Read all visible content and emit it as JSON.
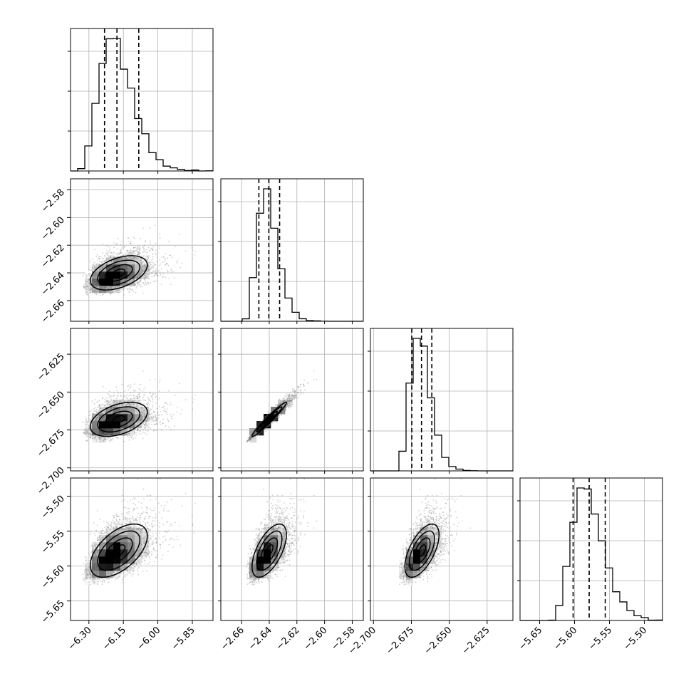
{
  "chart_data": {
    "type": "corner",
    "parameters": [
      {
        "range": [
          -6.38,
          -5.76
        ],
        "ticks": [
          -6.3,
          -6.15,
          -6.0,
          -5.85
        ],
        "tick_labels": [
          "−6.30",
          "−6.15",
          "−6.00",
          "−5.85"
        ],
        "quantiles": [
          -6.232,
          -6.178,
          -6.083
        ],
        "mean": -6.17,
        "sd": 0.075
      },
      {
        "range": [
          -2.675,
          -2.572
        ],
        "ticks": [
          -2.66,
          -2.64,
          -2.62,
          -2.6,
          -2.58
        ],
        "tick_labels": [
          "−2.66",
          "−2.64",
          "−2.62",
          "−2.60",
          "−2.58"
        ],
        "quantiles": [
          -2.6475,
          -2.6403,
          -2.6325
        ],
        "mean": -2.64,
        "sd": 0.0075
      },
      {
        "range": [
          -2.702,
          -2.608
        ],
        "ticks": [
          -2.7,
          -2.675,
          -2.65,
          -2.625
        ],
        "tick_labels": [
          "−2.700",
          "−2.675",
          "−2.650",
          "−2.625"
        ],
        "quantiles": [
          -2.6747,
          -2.6683,
          -2.6615
        ],
        "mean": -2.668,
        "sd": 0.0068
      },
      {
        "range": [
          -5.678,
          -5.474
        ],
        "ticks": [
          -5.65,
          -5.6,
          -5.55,
          -5.5
        ],
        "tick_labels": [
          "−5.65",
          "−5.60",
          "−5.55",
          "−5.50"
        ],
        "quantiles": [
          -5.602,
          -5.579,
          -5.556
        ],
        "mean": -5.578,
        "sd": 0.023
      }
    ],
    "correlations": [
      [
        1,
        2,
        0.45
      ],
      [
        1,
        3,
        0.42
      ],
      [
        2,
        3,
        0.97
      ],
      [
        1,
        4,
        0.55
      ],
      [
        2,
        4,
        0.6
      ],
      [
        3,
        4,
        0.6
      ]
    ],
    "hist_ymax_fraction": 0.93,
    "grid": true,
    "colors": {
      "line": "#000000",
      "grid": "#b0b0b0",
      "points": "#777777",
      "frame": "#000000"
    }
  }
}
